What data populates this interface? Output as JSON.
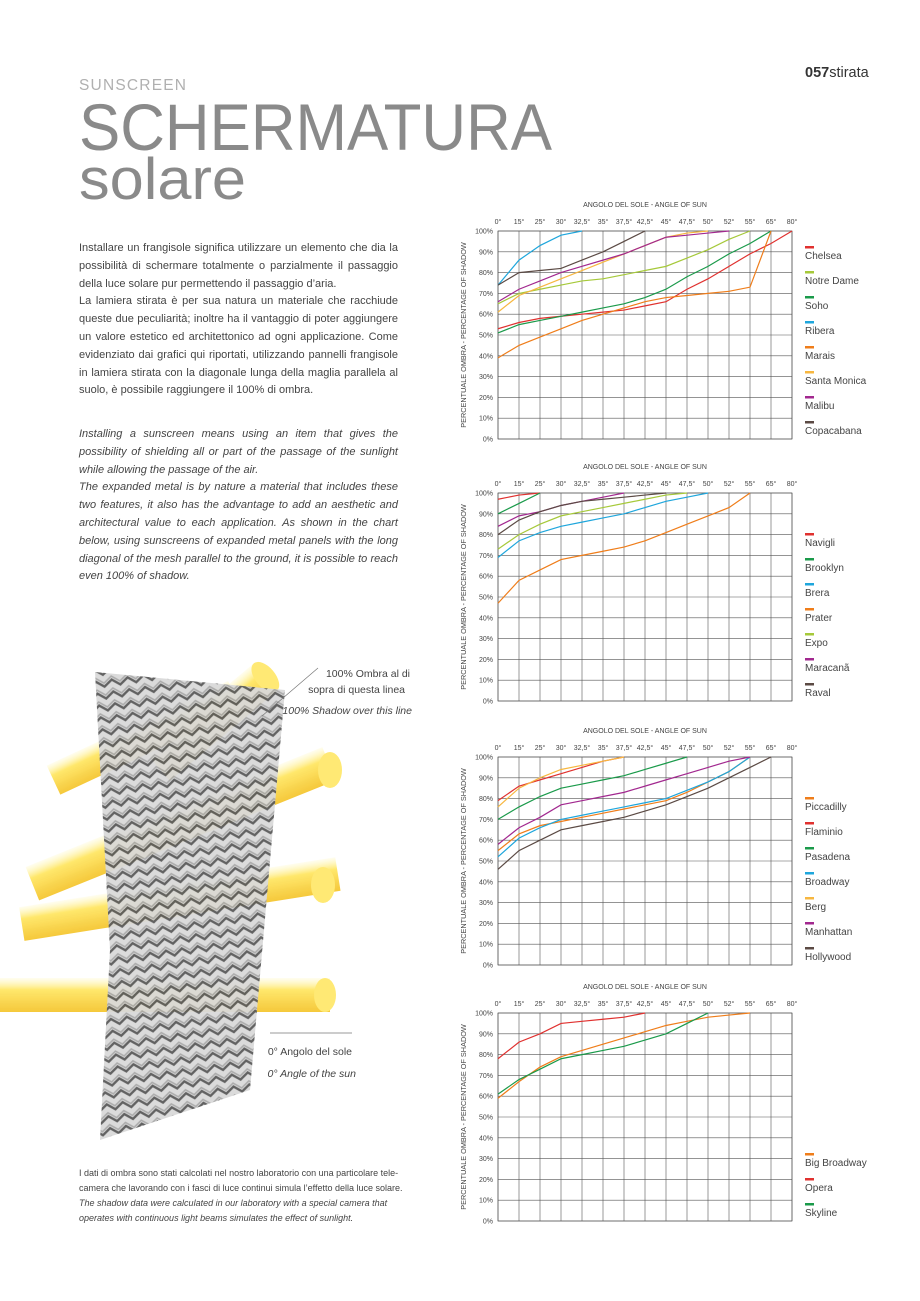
{
  "header": {
    "section": "SUNSCREEN",
    "title": "SCHERMATURA",
    "subtitle": "solare",
    "page_number": "057",
    "brand": "stirata"
  },
  "text_it": [
    [
      "Installare un frangisole significa utilizzare un elemento che dia la",
      "possibilità di schermare totalmente o parzialmente il passaggio",
      "della luce solare pur permettendo il passaggio d’aria."
    ],
    [
      "La lamiera stirata è per sua natura un materiale che racchiude",
      "queste due peculiarità; inoltre ha il vantaggio di poter aggiungere",
      "un valore estetico ed architettonico ad ogni applicazione. Come",
      "evidenziato dai grafici qui riportati, utilizzando pannelli frangisole",
      "in lamiera stirata con la diagonale lunga della maglia parallela al",
      "suolo, è possibile raggiungere il 100% di ombra."
    ]
  ],
  "text_en": [
    [
      "Installing a sunscreen means using an item that gives the",
      "possibility of shielding all or part of the passage of the sunlight",
      "while allowing the passage of the air."
    ],
    [
      "The expanded metal is by nature a material that includes these",
      "two features, it also has the advantage to add an aesthetic and",
      "architectural value to each application. As shown in the chart",
      "below, using sunscreens of expanded metal panels with the long",
      "diagonal of the mesh parallel to the ground,  it is possible to reach",
      "even 100% of shadow."
    ]
  ],
  "illustration": {
    "top_note": [
      "100% Ombra al di",
      "sopra di questa linea"
    ],
    "top_note_en": "100% Shadow over this line",
    "bottom_note": "0° Angolo del sole",
    "bottom_note_en": "0° Angle of the sun"
  },
  "footnote": {
    "it": [
      "I dati di ombra sono stati calcolati nel nostro laboratorio con una particolare tele-",
      "camera che lavorando con i fasci di luce continui simula l’effetto della luce solare."
    ],
    "en": [
      "The shadow data were calculated in our laboratory with a special camera that",
      "operates with continuous light beams simulates the effect of sunlight."
    ]
  },
  "chart_data": [
    {
      "type": "line",
      "title": "ANGOLO DEL SOLE - ANGLE OF SUN",
      "y_label": "PERCENTUALE OMBRA - PERCENTAGE OF SHADOW",
      "categories": [
        "0°",
        "15°",
        "25°",
        "30°",
        "32,5°",
        "35°",
        "37,5°",
        "42,5°",
        "45°",
        "47,5°",
        "50°",
        "52°",
        "55°",
        "65°",
        "80°"
      ],
      "ylim": [
        0,
        100
      ],
      "yticks": [
        {
          "value": 0,
          "label": "0%"
        },
        {
          "value": 10,
          "label": "10%"
        },
        {
          "value": 20,
          "label": "20%"
        },
        {
          "value": 30,
          "label": "30%"
        },
        {
          "value": 40,
          "label": "40%"
        },
        {
          "value": 50,
          "label": "50%"
        },
        {
          "value": 60,
          "label": "60%"
        },
        {
          "value": 70,
          "label": "70%"
        },
        {
          "value": 80,
          "label": "80%"
        },
        {
          "value": 90,
          "label": "90%"
        },
        {
          "value": 100,
          "label": "100%"
        }
      ],
      "grid": true,
      "series": [
        {
          "name": "Chelsea",
          "color": "#e0312f",
          "values": [
            53,
            56,
            58,
            59,
            60,
            61,
            62,
            64,
            66,
            72,
            77,
            83,
            89,
            94,
            100
          ]
        },
        {
          "name": "Notre Dame",
          "color": "#a6c93a",
          "values": [
            65,
            70,
            72,
            74,
            76,
            77,
            79,
            81,
            83,
            87,
            91,
            96,
            100,
            null,
            null
          ]
        },
        {
          "name": "Soho",
          "color": "#1a9a4a",
          "values": [
            51,
            55,
            57,
            59,
            61,
            63,
            65,
            68,
            72,
            78,
            83,
            89,
            94,
            100,
            null
          ]
        },
        {
          "name": "Ribera",
          "color": "#1ea6dc",
          "values": [
            74,
            86,
            93,
            98,
            100,
            null,
            null,
            null,
            null,
            null,
            null,
            null,
            null,
            null,
            null
          ]
        },
        {
          "name": "Marais",
          "color": "#ef7d1a",
          "values": [
            39,
            45,
            49,
            53,
            57,
            60,
            63,
            66,
            68,
            69,
            70,
            71,
            73,
            100,
            null
          ]
        },
        {
          "name": "Santa Monica",
          "color": "#f7b740",
          "values": [
            61,
            69,
            73,
            77,
            81,
            85,
            89,
            93,
            97,
            99,
            100,
            null,
            null,
            null,
            null
          ]
        },
        {
          "name": "Malibu",
          "color": "#a2288f",
          "values": [
            66,
            72,
            76,
            80,
            83,
            86,
            89,
            93,
            97,
            98,
            99,
            100,
            null,
            null,
            null
          ]
        },
        {
          "name": "Copacabana",
          "color": "#5b4a44",
          "values": [
            74,
            80,
            81,
            82,
            86,
            90,
            95,
            100,
            null,
            null,
            null,
            null,
            null,
            null,
            null
          ]
        }
      ]
    },
    {
      "type": "line",
      "title": "ANGOLO DEL SOLE - ANGLE OF SUN",
      "y_label": "PERCENTUALE OMBRA - PERCENTAGE OF SHADOW",
      "categories": [
        "0°",
        "15°",
        "25°",
        "30°",
        "32,5°",
        "35°",
        "37,5°",
        "42,5°",
        "45°",
        "47,5°",
        "50°",
        "52°",
        "55°",
        "65°",
        "80°"
      ],
      "ylim": [
        0,
        100
      ],
      "yticks": [
        {
          "value": 0,
          "label": "0%"
        },
        {
          "value": 10,
          "label": "10%"
        },
        {
          "value": 20,
          "label": "20%"
        },
        {
          "value": 30,
          "label": "30%"
        },
        {
          "value": 40,
          "label": "40%"
        },
        {
          "value": 50,
          "label": "50%"
        },
        {
          "value": 60,
          "label": "60%"
        },
        {
          "value": 70,
          "label": "70%"
        },
        {
          "value": 80,
          "label": "80%"
        },
        {
          "value": 90,
          "label": "90%"
        },
        {
          "value": 100,
          "label": "100%"
        }
      ],
      "grid": true,
      "series": [
        {
          "name": "Navigli",
          "color": "#e0312f",
          "values": [
            97,
            99,
            100,
            null,
            null,
            null,
            null,
            null,
            null,
            null,
            null,
            null,
            null,
            null,
            null
          ]
        },
        {
          "name": "Brooklyn",
          "color": "#1a9a4a",
          "values": [
            90,
            95,
            100,
            null,
            null,
            null,
            null,
            null,
            null,
            null,
            null,
            null,
            null,
            null,
            null
          ]
        },
        {
          "name": "Brera",
          "color": "#1ea6dc",
          "values": [
            69,
            77,
            81,
            84,
            86,
            88,
            90,
            93,
            96,
            98,
            100,
            null,
            null,
            null,
            null
          ]
        },
        {
          "name": "Prater",
          "color": "#ef7d1a",
          "values": [
            47,
            58,
            63,
            68,
            70,
            72,
            74,
            77,
            81,
            85,
            89,
            93,
            100,
            null,
            null
          ]
        },
        {
          "name": "Expo",
          "color": "#a6c93a",
          "values": [
            73,
            80,
            85,
            89,
            91,
            93,
            95,
            97,
            99,
            100,
            null,
            null,
            null,
            null,
            null
          ]
        },
        {
          "name": "Maracanã",
          "color": "#a2288f",
          "values": [
            84,
            89,
            91,
            94,
            96,
            98,
            100,
            null,
            null,
            null,
            null,
            null,
            null,
            null,
            null
          ]
        },
        {
          "name": "Raval",
          "color": "#5b4a44",
          "values": [
            80,
            87,
            91,
            94,
            96,
            97,
            98,
            99,
            100,
            null,
            null,
            null,
            null,
            null,
            null
          ]
        }
      ]
    },
    {
      "type": "line",
      "title": "ANGOLO DEL SOLE - ANGLE OF SUN",
      "y_label": "PERCENTUALE OMBRA - PERCENTAGE OF SHADOW",
      "categories": [
        "0°",
        "15°",
        "25°",
        "30°",
        "32,5°",
        "35°",
        "37,5°",
        "42,5°",
        "45°",
        "47,5°",
        "50°",
        "52°",
        "55°",
        "65°",
        "80°"
      ],
      "ylim": [
        0,
        100
      ],
      "yticks": [
        {
          "value": 0,
          "label": "0%"
        },
        {
          "value": 10,
          "label": "10%"
        },
        {
          "value": 20,
          "label": "20%"
        },
        {
          "value": 30,
          "label": "30%"
        },
        {
          "value": 40,
          "label": "40%"
        },
        {
          "value": 50,
          "label": "50%"
        },
        {
          "value": 60,
          "label": "60%"
        },
        {
          "value": 70,
          "label": "70%"
        },
        {
          "value": 80,
          "label": "80%"
        },
        {
          "value": 90,
          "label": "90%"
        },
        {
          "value": 100,
          "label": "100%"
        }
      ],
      "grid": true,
      "series": [
        {
          "name": "Piccadilly",
          "color": "#ef7d1a",
          "values": [
            55,
            63,
            67,
            69,
            71,
            73,
            75,
            77,
            79,
            83,
            88,
            93,
            100,
            null,
            null
          ]
        },
        {
          "name": "Flaminio",
          "color": "#e0312f",
          "values": [
            79,
            86,
            89,
            92,
            95,
            98,
            100,
            null,
            null,
            null,
            null,
            null,
            null,
            null,
            null
          ]
        },
        {
          "name": "Pasadena",
          "color": "#1a9a4a",
          "values": [
            70,
            76,
            81,
            85,
            87,
            89,
            91,
            94,
            97,
            100,
            null,
            null,
            null,
            null,
            null
          ]
        },
        {
          "name": "Broadway",
          "color": "#1ea6dc",
          "values": [
            52,
            61,
            66,
            70,
            72,
            74,
            76,
            78,
            80,
            84,
            88,
            93,
            100,
            null,
            null
          ]
        },
        {
          "name": "Berg",
          "color": "#f7b740",
          "values": [
            76,
            85,
            90,
            94,
            96,
            98,
            100,
            null,
            null,
            null,
            null,
            null,
            null,
            null,
            null
          ]
        },
        {
          "name": "Manhattan",
          "color": "#a2288f",
          "values": [
            58,
            66,
            71,
            77,
            79,
            81,
            83,
            86,
            89,
            92,
            95,
            98,
            100,
            null,
            null
          ]
        },
        {
          "name": "Hollywood",
          "color": "#5b4a44",
          "values": [
            46,
            55,
            60,
            65,
            67,
            69,
            71,
            74,
            77,
            81,
            85,
            90,
            95,
            100,
            null
          ]
        }
      ]
    },
    {
      "type": "line",
      "title": "ANGOLO DEL SOLE - ANGLE OF SUN",
      "y_label": "PERCENTUALE OMBRA - PERCENTAGE OF SHADOW",
      "categories": [
        "0°",
        "15°",
        "25°",
        "30°",
        "32,5°",
        "35°",
        "37,5°",
        "42,5°",
        "45°",
        "47,5°",
        "50°",
        "52°",
        "55°",
        "65°",
        "80°"
      ],
      "ylim": [
        0,
        100
      ],
      "yticks": [
        {
          "value": 0,
          "label": "0%"
        },
        {
          "value": 10,
          "label": "10%"
        },
        {
          "value": 20,
          "label": "20%"
        },
        {
          "value": 30,
          "label": "30%"
        },
        {
          "value": 40,
          "label": "40%"
        },
        {
          "value": 50,
          "label": "50%"
        },
        {
          "value": 60,
          "label": "60%"
        },
        {
          "value": 70,
          "label": "70%"
        },
        {
          "value": 80,
          "label": "80%"
        },
        {
          "value": 90,
          "label": "90%"
        },
        {
          "value": 100,
          "label": "100%"
        }
      ],
      "grid": true,
      "series": [
        {
          "name": "Big Broadway",
          "color": "#ef7d1a",
          "values": [
            59,
            67,
            74,
            79,
            82,
            85,
            88,
            91,
            94,
            96,
            98,
            99,
            100,
            null,
            null
          ]
        },
        {
          "name": "Opera",
          "color": "#e0312f",
          "values": [
            78,
            86,
            90,
            95,
            96,
            97,
            98,
            100,
            null,
            null,
            null,
            null,
            null,
            null,
            null
          ]
        },
        {
          "name": "Skyline",
          "color": "#1a9a4a",
          "values": [
            61,
            68,
            73,
            78,
            80,
            82,
            84,
            87,
            90,
            95,
            100,
            null,
            null,
            null,
            null
          ]
        }
      ]
    }
  ]
}
